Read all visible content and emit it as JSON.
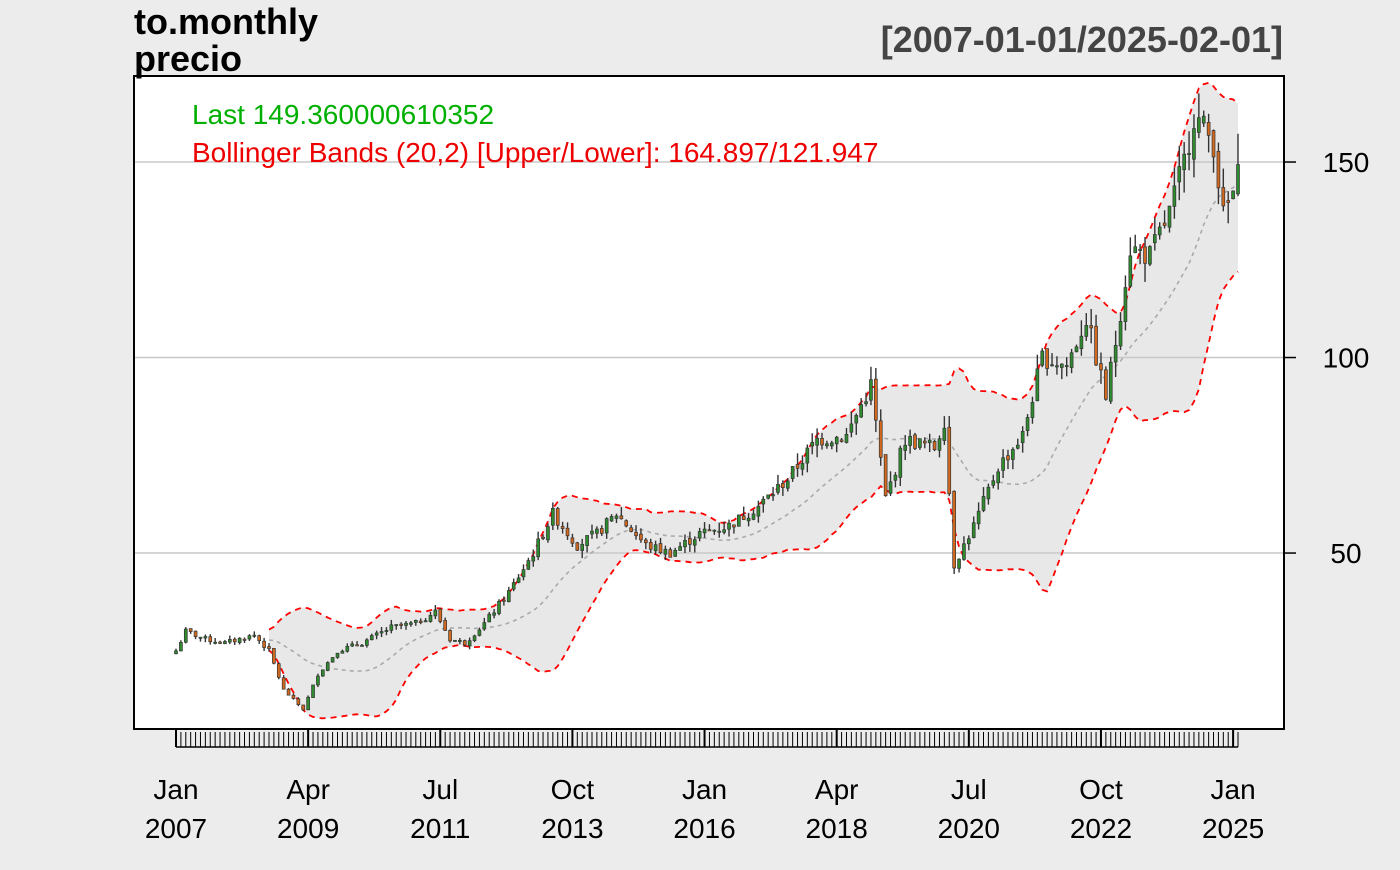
{
  "title_line1": "to.monthly",
  "title_line2": "precio",
  "date_range": "[2007-01-01/2025-02-01]",
  "colors": {
    "background": "#ececec",
    "plot_bg": "#ffffff",
    "up": "#2e8b2e",
    "down": "#d2691e",
    "wick": "#333333",
    "band": "#e8e8e8",
    "band_line": "#ff0000",
    "ma_line": "#aaaaaa",
    "grid": "#c8c8c8",
    "last_label": "#00b000",
    "bb_label": "#ee0000"
  },
  "legend": {
    "last": "Last 149.360000610352",
    "bb": "Bollinger Bands (20,2) [Upper/Lower]: 164.897/121.947"
  },
  "chart_data": {
    "type": "candlestick",
    "frequency": "monthly",
    "start": "2007-01",
    "end": "2025-02",
    "ylim": [
      5,
      172
    ],
    "yticks": [
      50,
      100,
      150
    ],
    "grid": true,
    "y_axis_side": "right",
    "x_ticks": [
      {
        "date": "2007-01",
        "month": "Jan",
        "year": "2007"
      },
      {
        "date": "2009-04",
        "month": "Apr",
        "year": "2009"
      },
      {
        "date": "2011-07",
        "month": "Jul",
        "year": "2011"
      },
      {
        "date": "2013-10",
        "month": "Oct",
        "year": "2013"
      },
      {
        "date": "2016-01",
        "month": "Jan",
        "year": "2016"
      },
      {
        "date": "2018-04",
        "month": "Apr",
        "year": "2018"
      },
      {
        "date": "2020-07",
        "month": "Jul",
        "year": "2020"
      },
      {
        "date": "2022-10",
        "month": "Oct",
        "year": "2022"
      },
      {
        "date": "2025-01",
        "month": "Jan",
        "year": "2025"
      }
    ],
    "close_anchors": [
      [
        "2007-01",
        25
      ],
      [
        "2007-03",
        30
      ],
      [
        "2007-07",
        28
      ],
      [
        "2007-11",
        27
      ],
      [
        "2008-05",
        29
      ],
      [
        "2008-08",
        25
      ],
      [
        "2008-11",
        15
      ],
      [
        "2009-03",
        10
      ],
      [
        "2009-06",
        19
      ],
      [
        "2009-10",
        25
      ],
      [
        "2010-03",
        27
      ],
      [
        "2010-09",
        31
      ],
      [
        "2011-02",
        32
      ],
      [
        "2011-06",
        35
      ],
      [
        "2011-09",
        28
      ],
      [
        "2011-12",
        27
      ],
      [
        "2012-04",
        32
      ],
      [
        "2012-09",
        40
      ],
      [
        "2013-02",
        50
      ],
      [
        "2013-06",
        60
      ],
      [
        "2013-11",
        52
      ],
      [
        "2014-03",
        55
      ],
      [
        "2014-07",
        60
      ],
      [
        "2015-01",
        52
      ],
      [
        "2015-06",
        50
      ],
      [
        "2015-12",
        55
      ],
      [
        "2016-06",
        57
      ],
      [
        "2016-12",
        62
      ],
      [
        "2017-06",
        69
      ],
      [
        "2017-12",
        79
      ],
      [
        "2018-06",
        80
      ],
      [
        "2018-11",
        93
      ],
      [
        "2019-02",
        64
      ],
      [
        "2019-06",
        79
      ],
      [
        "2019-12",
        77
      ],
      [
        "2020-02",
        84
      ],
      [
        "2020-04",
        47
      ],
      [
        "2020-08",
        57
      ],
      [
        "2021-01",
        72
      ],
      [
        "2021-06",
        80
      ],
      [
        "2021-10",
        100
      ],
      [
        "2022-03",
        98
      ],
      [
        "2022-07",
        110
      ],
      [
        "2022-11",
        90
      ],
      [
        "2023-01",
        104
      ],
      [
        "2023-04",
        128
      ],
      [
        "2023-08",
        126
      ],
      [
        "2023-12",
        137
      ],
      [
        "2024-03",
        150
      ],
      [
        "2024-05",
        162
      ],
      [
        "2024-09",
        155
      ],
      [
        "2024-11",
        136
      ],
      [
        "2025-01",
        142
      ],
      [
        "2025-02",
        149.36
      ]
    ],
    "bands": {
      "period": 20,
      "sd": 2,
      "upper_last": 164.897,
      "lower_last": 121.947
    }
  }
}
